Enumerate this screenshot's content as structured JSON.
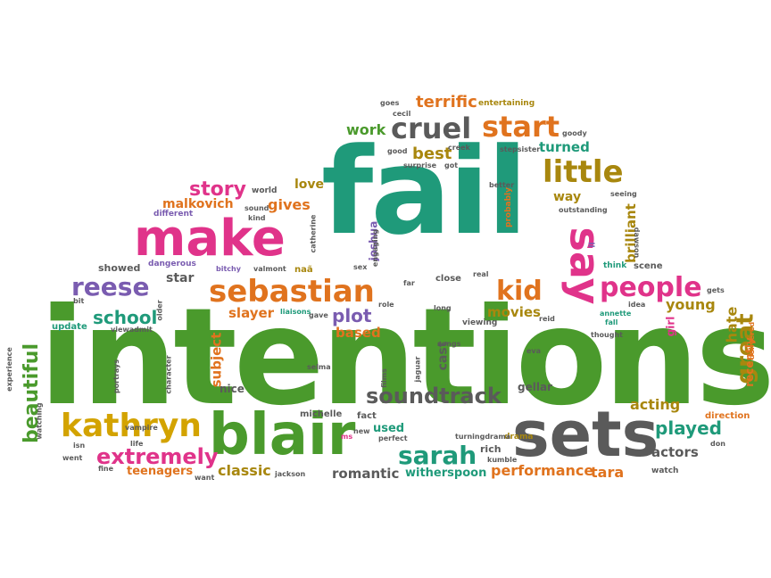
{
  "words": [
    "intentions",
    "fail",
    "sets",
    "blair",
    "make",
    "kathryn",
    "say",
    "sebastian",
    "cruel",
    "start",
    "little",
    "people",
    "kid",
    "soundtrack",
    "sarah",
    "reese",
    "school",
    "story",
    "extremely",
    "great",
    "beautiful",
    "played",
    "terrific",
    "work",
    "best",
    "malkovich",
    "gives",
    "love",
    "plot",
    "slayer",
    "movies",
    "acting",
    "performance",
    "tara",
    "classic",
    "teenagers",
    "romantic",
    "witherspoon",
    "young",
    "hate",
    "turned",
    "brilliant",
    "way",
    "showed",
    "star",
    "based",
    "subject",
    "used",
    "cast",
    "actors",
    "nice",
    "michelle",
    "fact",
    "rich",
    "drama",
    "gellar",
    "update",
    "girl",
    "recently",
    "direction",
    "dangerous",
    "different",
    "sound",
    "world",
    "kind",
    "catherine",
    "joshua",
    "engaging",
    "better",
    "probably",
    "outstanding",
    "seeing",
    "dawson",
    "goody",
    "entertaining",
    "goes",
    "cecil",
    "creek",
    "stepsister",
    "surprise",
    "got",
    "good",
    "bitchy",
    "valmont",
    "naã",
    "sex",
    "far",
    "real",
    "close",
    "liaisons",
    "gave",
    "role",
    "long",
    "viewing",
    "reid",
    "annette",
    "idea",
    "fall",
    "thought",
    "scene",
    "think",
    "gets",
    "older",
    "viewadmit",
    "vampire",
    "character",
    "portrays",
    "selma",
    "eva",
    "songs",
    "jaguar",
    "films",
    "new",
    "ms",
    "perfect",
    "turningdrama",
    "kumble",
    "watch",
    "don",
    "delivered",
    "experience",
    "watching",
    "went",
    "fine",
    "life",
    "jackson",
    "want",
    "isn",
    "bit",
    "ll"
  ]
}
